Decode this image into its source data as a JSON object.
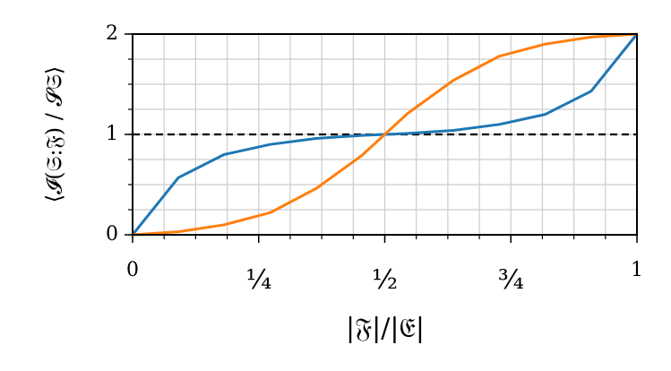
{
  "chart_data": {
    "type": "line",
    "xlabel": "|𝔉|/|𝔈|",
    "ylabel": "⟨𝓘(𝔖:𝔉) / 𝓢𝔖⟩",
    "x": [
      0,
      0.0909,
      0.1818,
      0.2727,
      0.3636,
      0.4545,
      0.5455,
      0.6364,
      0.7273,
      0.8182,
      0.9091,
      1
    ],
    "series": [
      {
        "color": "#1f77b4",
        "values": [
          0,
          0.57,
          0.8,
          0.9,
          0.96,
          0.99,
          1.01,
          1.04,
          1.1,
          1.2,
          1.43,
          2.0
        ]
      },
      {
        "color": "#ff7f0e",
        "values": [
          0,
          0.03,
          0.1,
          0.22,
          0.46,
          0.79,
          1.21,
          1.54,
          1.78,
          1.9,
          1.97,
          2.0
        ]
      }
    ],
    "xlim": [
      0,
      1
    ],
    "ylim": [
      0,
      2
    ],
    "xticks": [
      0,
      {
        "value": 0.25,
        "label": "¼"
      },
      {
        "value": 0.5,
        "label": "½"
      },
      {
        "value": 0.75,
        "label": "¾"
      },
      1
    ],
    "yticks": [
      0,
      1,
      2
    ],
    "grid": true,
    "x_minor_step": 0.0625,
    "y_minor_step": 0.25,
    "hline": {
      "value": 1,
      "color": "#000000",
      "dashed": true
    }
  }
}
